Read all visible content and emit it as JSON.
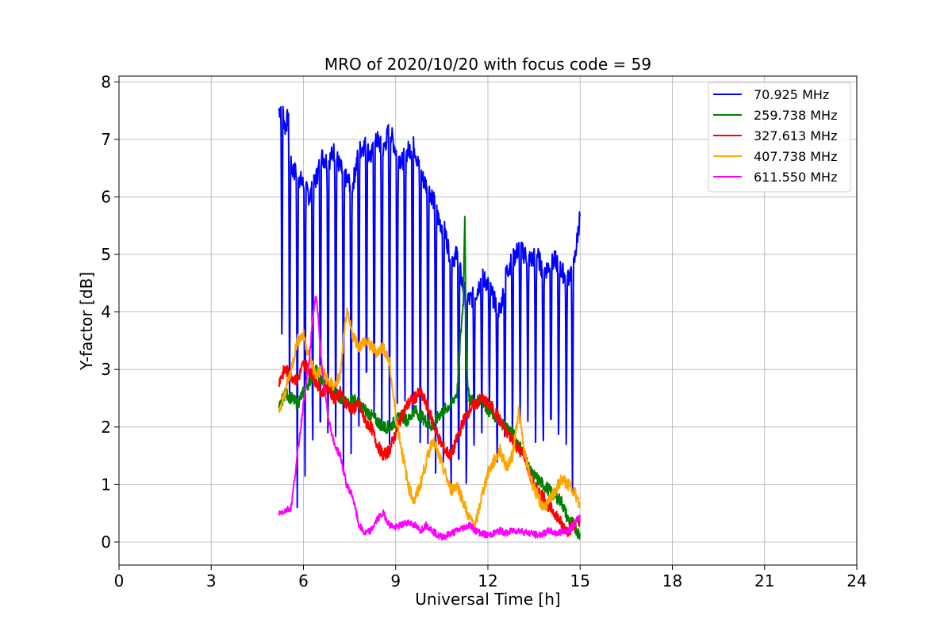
{
  "chart_data": {
    "type": "line",
    "title": "MRO of 2020/10/20 with focus code = 59",
    "xlabel": "Universal Time [h]",
    "ylabel": "Y-factor [dB]",
    "xlim": [
      0,
      24
    ],
    "ylim": [
      -0.4,
      8.1
    ],
    "xticks": [
      0,
      3,
      6,
      9,
      12,
      15,
      18,
      21,
      24
    ],
    "yticks": [
      0,
      1,
      2,
      3,
      4,
      5,
      6,
      7,
      8
    ],
    "grid": true,
    "legend_position": "top-right",
    "series": [
      {
        "name": " 70.925 MHz",
        "color": "#0000ff",
        "x": [
          5.2,
          5.3,
          5.4,
          5.5,
          5.6,
          5.8,
          6.0,
          6.2,
          6.4,
          6.6,
          6.8,
          7.0,
          7.2,
          7.4,
          7.6,
          7.8,
          8.0,
          8.2,
          8.4,
          8.6,
          8.8,
          9.0,
          9.2,
          9.4,
          9.6,
          9.8,
          10.0,
          10.2,
          10.4,
          10.6,
          10.8,
          11.0,
          11.2,
          11.4,
          11.6,
          11.8,
          12.0,
          12.2,
          12.4,
          12.6,
          12.8,
          13.0,
          13.2,
          13.4,
          13.6,
          13.8,
          14.0,
          14.2,
          14.4,
          14.6,
          14.8,
          15.0
        ],
        "y": [
          7.5,
          7.6,
          7.2,
          7.4,
          6.5,
          6.4,
          6.2,
          6.0,
          6.3,
          6.7,
          6.6,
          6.8,
          6.5,
          6.3,
          6.2,
          6.8,
          6.9,
          6.7,
          7.0,
          6.8,
          7.2,
          6.8,
          6.6,
          6.8,
          6.9,
          6.4,
          6.2,
          6.0,
          5.6,
          5.4,
          4.9,
          5.0,
          4.4,
          4.2,
          4.3,
          4.6,
          4.5,
          4.2,
          4.0,
          4.7,
          4.9,
          5.1,
          5.0,
          4.9,
          5.0,
          4.7,
          4.8,
          4.9,
          4.7,
          4.6,
          4.8,
          5.7
        ],
        "dips": [
          5.3,
          5.55,
          5.8,
          6.05,
          6.3,
          6.55,
          6.8,
          7.05,
          7.3,
          7.55,
          7.8,
          8.05,
          8.3,
          8.55,
          8.8,
          9.05,
          9.3,
          9.55,
          9.8,
          10.05,
          10.3,
          10.55,
          10.8,
          11.05,
          11.3,
          11.55,
          11.8,
          12.05,
          12.3,
          12.55,
          12.8,
          13.05,
          13.3,
          13.55,
          13.8,
          14.05,
          14.3,
          14.55,
          14.75
        ],
        "dip_floor": [
          3.0,
          2.1,
          0.6,
          0.8,
          1.1,
          1.0,
          1.2,
          1.5,
          1.3,
          1.2,
          1.3,
          2.0,
          1.5,
          1.6,
          1.7,
          2.1,
          1.8,
          1.1,
          1.0,
          1.4,
          1.2,
          1.1,
          0.4,
          0.6,
          0.5,
          1.5,
          1.9,
          2.3,
          1.0,
          1.2,
          1.4,
          1.9,
          2.1,
          1.5,
          1.3,
          1.5,
          1.4,
          1.5,
          0.6
        ]
      },
      {
        "name": "259.738 MHz",
        "color": "#008000",
        "x": [
          5.2,
          5.4,
          5.6,
          5.8,
          6.0,
          6.2,
          6.4,
          6.6,
          6.8,
          7.0,
          7.2,
          7.4,
          7.6,
          7.8,
          8.0,
          8.2,
          8.4,
          8.6,
          8.8,
          9.0,
          9.2,
          9.4,
          9.6,
          9.8,
          10.0,
          10.2,
          10.4,
          10.6,
          10.8,
          11.0,
          11.1,
          11.2,
          11.25,
          11.3,
          11.4,
          11.6,
          11.8,
          12.0,
          12.2,
          12.4,
          12.6,
          12.8,
          13.0,
          13.2,
          13.4,
          13.6,
          13.8,
          14.0,
          14.2,
          14.4,
          14.6,
          14.8,
          15.0
        ],
        "y": [
          2.3,
          2.6,
          2.5,
          2.4,
          2.6,
          2.8,
          3.0,
          2.8,
          2.7,
          2.6,
          2.5,
          2.4,
          2.5,
          2.4,
          2.3,
          2.2,
          2.1,
          2.0,
          2.0,
          2.1,
          2.2,
          2.1,
          2.3,
          2.2,
          2.1,
          2.0,
          2.2,
          2.3,
          2.4,
          2.6,
          3.5,
          4.2,
          5.8,
          3.0,
          2.5,
          2.4,
          2.5,
          2.3,
          2.2,
          2.1,
          2.0,
          1.9,
          1.7,
          1.5,
          1.2,
          1.1,
          1.0,
          0.9,
          0.8,
          0.7,
          0.4,
          0.3,
          0.1
        ]
      },
      {
        "name": "327.613 MHz",
        "color": "#ff0000",
        "x": [
          5.2,
          5.4,
          5.6,
          5.8,
          6.0,
          6.2,
          6.4,
          6.6,
          6.8,
          7.0,
          7.2,
          7.4,
          7.6,
          7.8,
          8.0,
          8.2,
          8.4,
          8.6,
          8.8,
          9.0,
          9.2,
          9.4,
          9.6,
          9.8,
          10.0,
          10.2,
          10.4,
          10.6,
          10.8,
          11.0,
          11.2,
          11.4,
          11.6,
          11.8,
          12.0,
          12.2,
          12.4,
          12.6,
          12.8,
          13.0,
          13.2,
          13.4,
          13.6,
          13.8,
          14.0,
          14.2,
          14.4,
          14.6,
          14.8,
          15.0
        ],
        "y": [
          2.8,
          3.0,
          2.9,
          2.8,
          3.1,
          3.0,
          2.8,
          2.6,
          2.7,
          2.5,
          2.6,
          2.4,
          2.3,
          2.4,
          2.1,
          2.0,
          1.7,
          1.5,
          1.6,
          1.9,
          2.2,
          2.4,
          2.5,
          2.6,
          2.4,
          2.1,
          1.8,
          1.6,
          1.5,
          1.8,
          2.1,
          2.3,
          2.4,
          2.5,
          2.4,
          2.3,
          2.1,
          1.9,
          1.8,
          1.6,
          1.5,
          1.1,
          0.9,
          0.8,
          0.6,
          0.5,
          0.3,
          0.2,
          0.3,
          0.4
        ]
      },
      {
        "name": "407.738 MHz",
        "color": "#ffa500",
        "x": [
          5.2,
          5.4,
          5.6,
          5.8,
          6.0,
          6.2,
          6.4,
          6.6,
          6.8,
          7.0,
          7.2,
          7.4,
          7.6,
          7.8,
          8.0,
          8.2,
          8.4,
          8.6,
          8.8,
          9.0,
          9.2,
          9.4,
          9.6,
          9.8,
          10.0,
          10.2,
          10.4,
          10.6,
          10.8,
          11.0,
          11.2,
          11.4,
          11.6,
          11.8,
          12.0,
          12.2,
          12.4,
          12.6,
          12.8,
          13.0,
          13.2,
          13.4,
          13.6,
          13.8,
          14.0,
          14.2,
          14.4,
          14.6,
          14.8,
          15.0
        ],
        "y": [
          2.2,
          2.6,
          3.0,
          3.5,
          3.6,
          3.2,
          2.9,
          3.0,
          2.8,
          2.7,
          2.9,
          4.0,
          3.6,
          3.4,
          3.5,
          3.4,
          3.3,
          3.4,
          3.1,
          2.2,
          1.6,
          1.0,
          0.7,
          1.0,
          1.4,
          1.8,
          1.5,
          1.2,
          0.9,
          1.0,
          0.7,
          0.4,
          0.3,
          0.8,
          1.2,
          1.4,
          1.6,
          1.3,
          1.5,
          2.3,
          1.5,
          1.1,
          0.8,
          0.6,
          0.7,
          0.9,
          1.1,
          1.0,
          0.9,
          0.6
        ]
      },
      {
        "name": "611.550 MHz",
        "color": "#ff00ff",
        "x": [
          5.2,
          5.4,
          5.6,
          5.8,
          6.0,
          6.2,
          6.3,
          6.4,
          6.5,
          6.6,
          6.8,
          7.0,
          7.2,
          7.4,
          7.6,
          7.8,
          8.0,
          8.2,
          8.4,
          8.6,
          8.8,
          9.0,
          9.2,
          9.4,
          9.6,
          9.8,
          10.0,
          10.2,
          10.4,
          10.6,
          10.8,
          11.0,
          11.2,
          11.4,
          11.6,
          11.8,
          12.0,
          12.2,
          12.4,
          12.6,
          12.8,
          13.0,
          13.2,
          13.4,
          13.6,
          13.8,
          14.0,
          14.2,
          14.4,
          14.6,
          14.8,
          15.0
        ],
        "y": [
          0.5,
          0.55,
          0.6,
          1.5,
          2.4,
          3.2,
          3.9,
          4.3,
          3.8,
          3.0,
          2.2,
          1.7,
          1.5,
          1.0,
          0.8,
          0.3,
          0.15,
          0.2,
          0.4,
          0.5,
          0.3,
          0.25,
          0.3,
          0.35,
          0.3,
          0.2,
          0.3,
          0.2,
          0.1,
          0.1,
          0.15,
          0.2,
          0.25,
          0.3,
          0.2,
          0.15,
          0.12,
          0.15,
          0.2,
          0.15,
          0.2,
          0.2,
          0.18,
          0.15,
          0.12,
          0.14,
          0.2,
          0.15,
          0.18,
          0.2,
          0.3,
          0.45
        ]
      }
    ]
  }
}
